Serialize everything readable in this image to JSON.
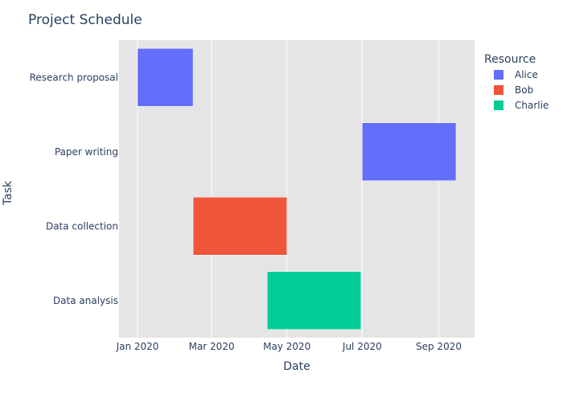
{
  "chart_data": {
    "type": "gantt",
    "title": "Project Schedule",
    "xlabel": "Date",
    "ylabel": "Task",
    "xlim": [
      "2019-12-17",
      "2020-09-30"
    ],
    "grid": true,
    "legend": {
      "title": "Resource",
      "placement": "top-right"
    },
    "x_ticks": [
      {
        "date": "2020-01-01",
        "label": "Jan 2020"
      },
      {
        "date": "2020-03-01",
        "label": "Mar 2020"
      },
      {
        "date": "2020-05-01",
        "label": "May 2020"
      },
      {
        "date": "2020-07-01",
        "label": "Jul 2020"
      },
      {
        "date": "2020-09-01",
        "label": "Sep 2020"
      }
    ],
    "categories": [
      "Research proposal",
      "Paper writing",
      "Data collection",
      "Data analysis"
    ],
    "series": [
      {
        "name": "Alice",
        "color": "#636efa"
      },
      {
        "name": "Bob",
        "color": "#ef553b"
      },
      {
        "name": "Charlie",
        "color": "#00cc96"
      }
    ],
    "tasks": [
      {
        "task": "Research proposal",
        "resource": "Alice",
        "start": "2020-01-01",
        "finish": "2020-02-15"
      },
      {
        "task": "Paper writing",
        "resource": "Alice",
        "start": "2020-07-01",
        "finish": "2020-09-15"
      },
      {
        "task": "Data collection",
        "resource": "Bob",
        "start": "2020-02-15",
        "finish": "2020-05-01"
      },
      {
        "task": "Data analysis",
        "resource": "Charlie",
        "start": "2020-04-15",
        "finish": "2020-06-30"
      }
    ]
  }
}
